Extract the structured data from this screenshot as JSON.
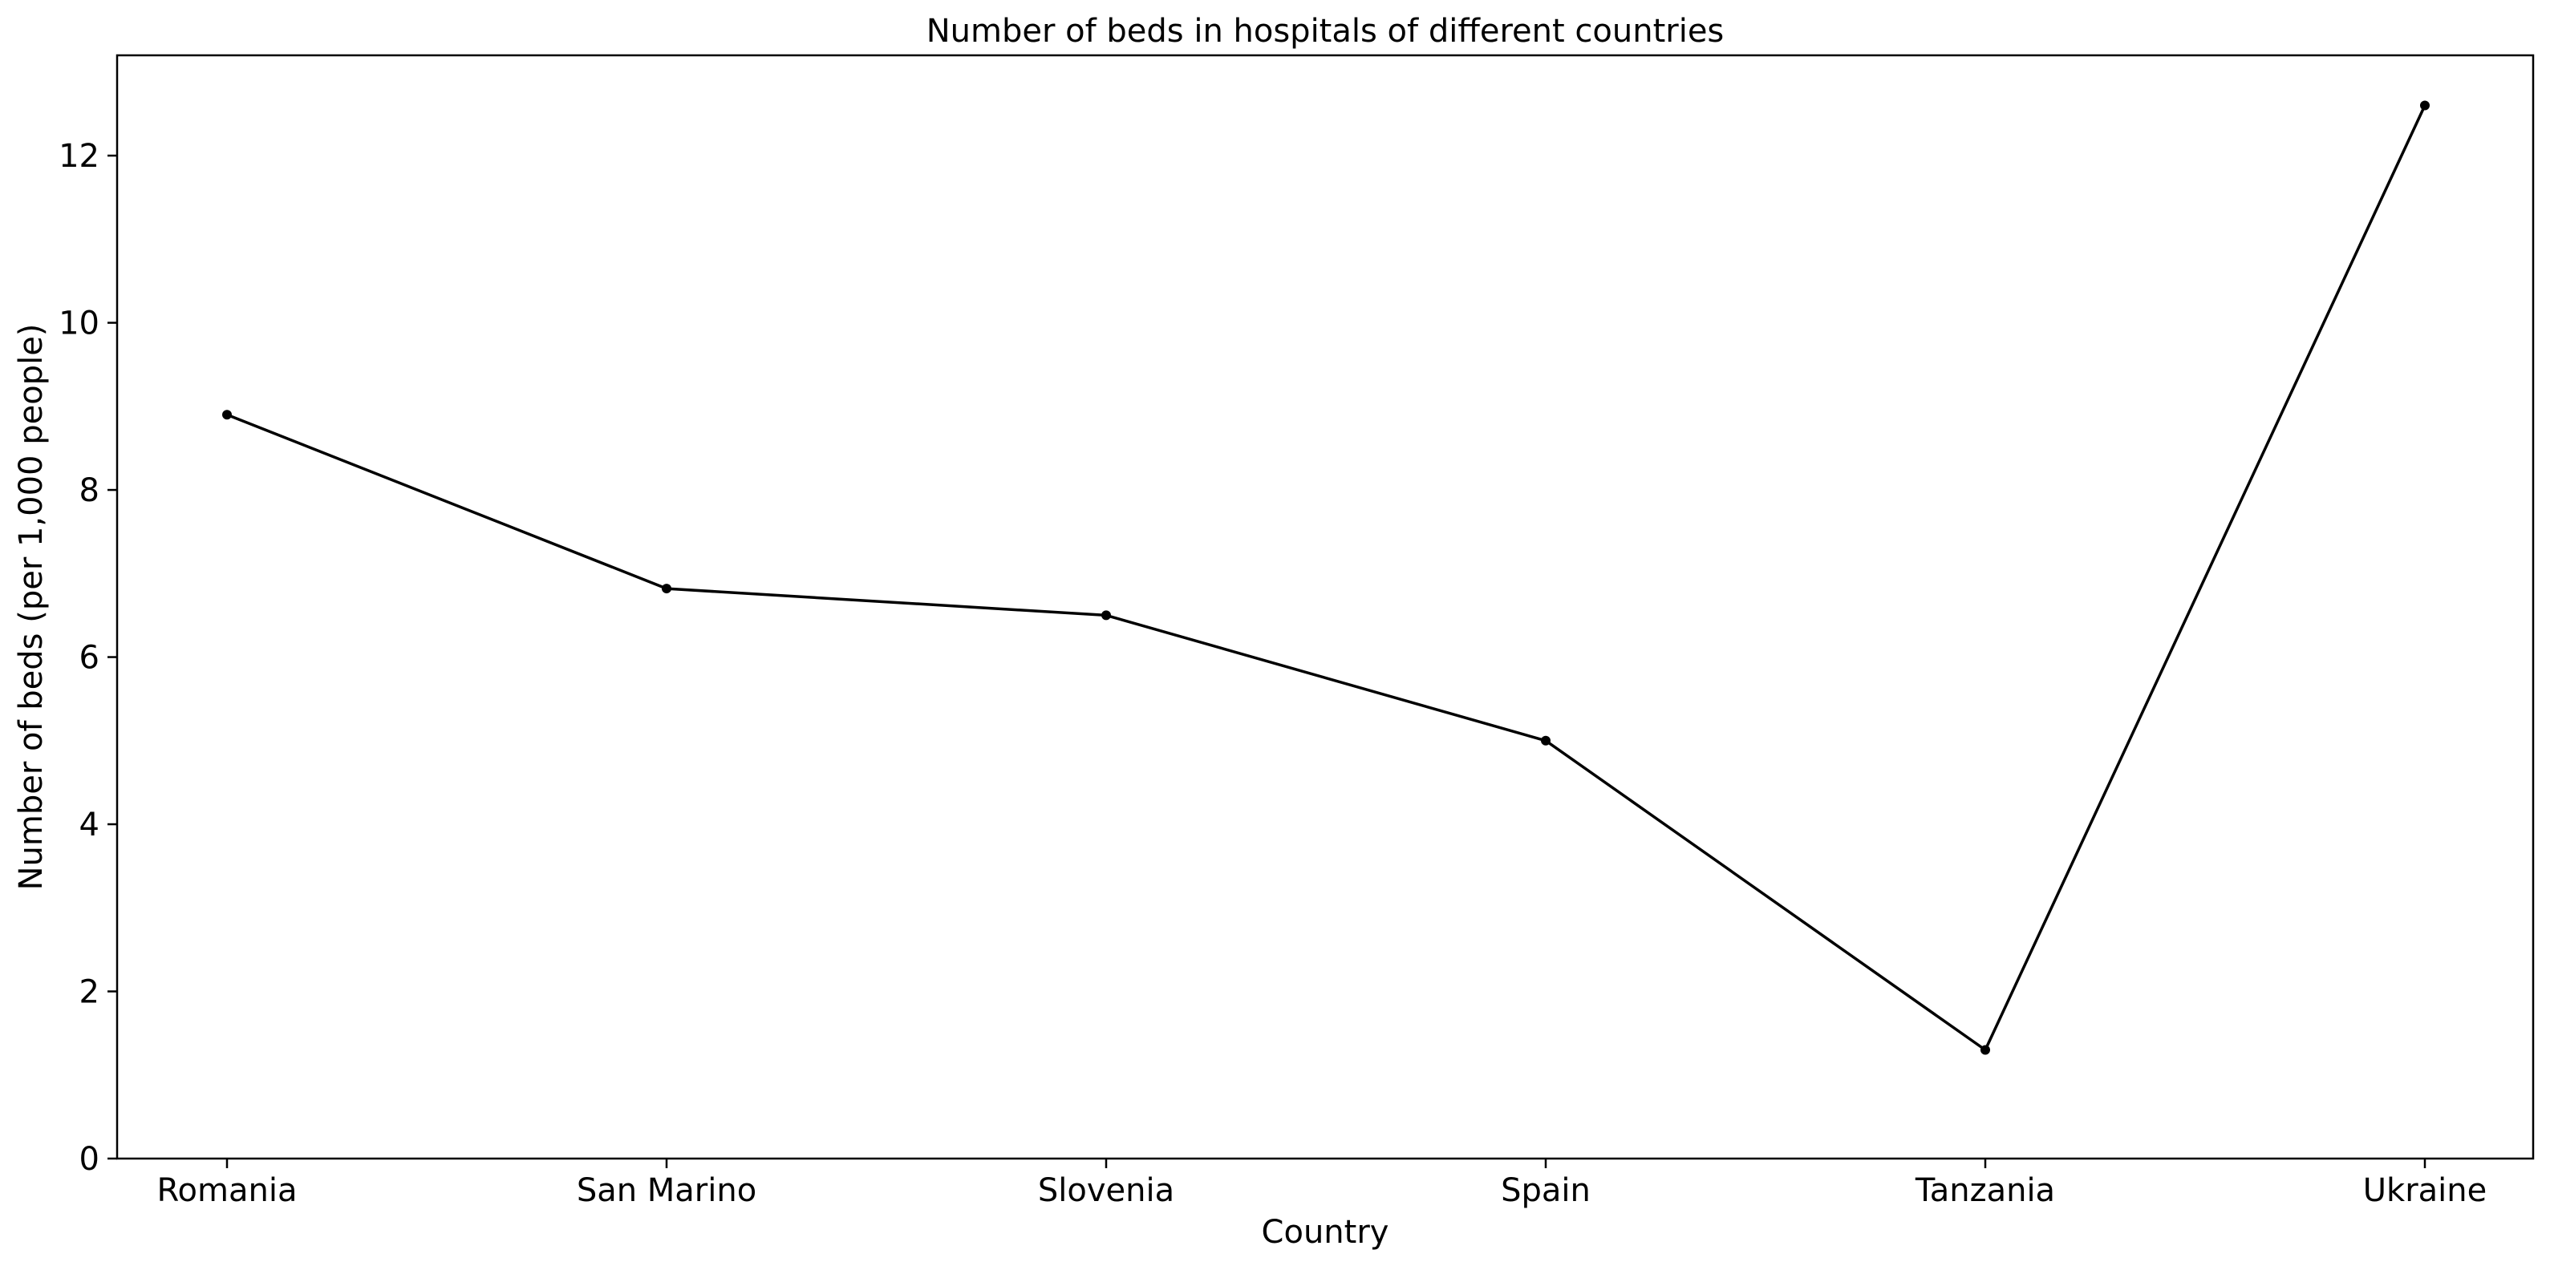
{
  "chart_data": {
    "type": "line",
    "title": "Number of beds in hospitals of different countries",
    "xlabel": "Country",
    "ylabel": "Number of beds (per 1,000 people)",
    "categories": [
      "Romania",
      "San Marino",
      "Slovenia",
      "Spain",
      "Tanzania",
      "Ukraine"
    ],
    "series": [
      {
        "values": [
          8.9,
          6.82,
          6.5,
          5.0,
          1.3,
          12.6
        ],
        "color": "#000000"
      }
    ],
    "ylim": [
      0,
      13.2
    ],
    "yticks": [
      0,
      2,
      4,
      6,
      8,
      10,
      12
    ],
    "grid": false,
    "markers": true
  }
}
